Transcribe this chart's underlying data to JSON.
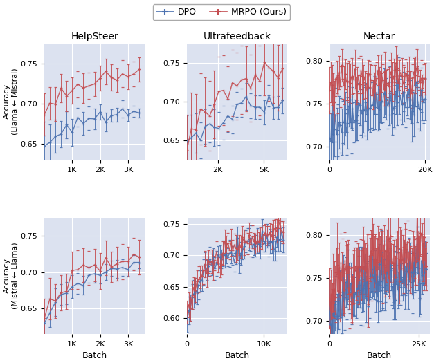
{
  "title_row1": [
    "HelpSteer",
    "Ultrafeedback",
    "Nectar"
  ],
  "ylabel_row1": "Accuracy\n(Llama ← Mistral)",
  "ylabel_row2": "Accuracy\n(Mistral ← Llama)",
  "xlabel": "Batch",
  "legend_labels": [
    "DPO",
    "MRPO (Ours)"
  ],
  "dpo_color": "#4c72b0",
  "mrpo_color": "#c44e52",
  "bg_color": "#dce2f0",
  "fig_bg": "#ffffff",
  "row1_col1_xlim": [
    0,
    3600
  ],
  "row1_col1_ylim": [
    0.63,
    0.775
  ],
  "row1_col1_xticks": [
    1000,
    2000,
    3000
  ],
  "row1_col1_xticklabels": [
    "1K",
    "2K",
    "3K"
  ],
  "row1_col1_yticks": [
    0.65,
    0.7,
    0.75
  ],
  "row1_col2_xlim": [
    0,
    6500
  ],
  "row1_col2_ylim": [
    0.625,
    0.775
  ],
  "row1_col2_xticks": [
    2000,
    5000
  ],
  "row1_col2_xticklabels": [
    "2K",
    "5K"
  ],
  "row1_col2_yticks": [
    0.65,
    0.7,
    0.75
  ],
  "row1_col3_xlim": [
    0,
    21000
  ],
  "row1_col3_ylim": [
    0.685,
    0.82
  ],
  "row1_col3_xticks": [
    0,
    20000
  ],
  "row1_col3_xticklabels": [
    "0",
    "20K"
  ],
  "row1_col3_yticks": [
    0.7,
    0.75,
    0.8
  ],
  "row2_col1_xlim": [
    0,
    3600
  ],
  "row2_col1_ylim": [
    0.615,
    0.775
  ],
  "row2_col1_xticks": [
    1000,
    2000,
    3000
  ],
  "row2_col1_xticklabels": [
    "1K",
    "2K",
    "3K"
  ],
  "row2_col1_yticks": [
    0.65,
    0.7,
    0.75
  ],
  "row2_col2_xlim": [
    0,
    13000
  ],
  "row2_col2_ylim": [
    0.575,
    0.76
  ],
  "row2_col2_xticks": [
    0,
    10000
  ],
  "row2_col2_xticklabels": [
    "0",
    "10K"
  ],
  "row2_col2_yticks": [
    0.6,
    0.65,
    0.7,
    0.75
  ],
  "row2_col3_xlim": [
    0,
    28000
  ],
  "row2_col3_ylim": [
    0.685,
    0.82
  ],
  "row2_col3_xticks": [
    0,
    25000
  ],
  "row2_col3_xticklabels": [
    "0",
    "25K"
  ],
  "row2_col3_yticks": [
    0.7,
    0.75,
    0.8
  ]
}
